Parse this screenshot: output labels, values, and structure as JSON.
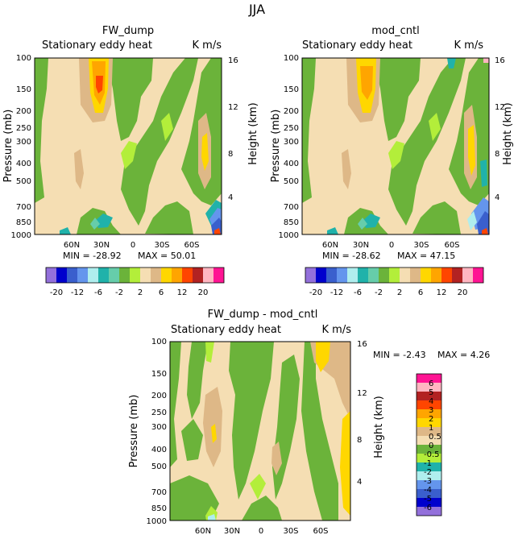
{
  "figure_title": "JJA",
  "chart_data": [
    {
      "type": "heatmap",
      "panel": "FW_dump",
      "title": "FW_dump",
      "left_label": "Stationary eddy heat",
      "right_label": "K m/s",
      "ylabel": "Pressure (mb)",
      "y2label": "Height (km)",
      "pressure_ticks": [
        "100",
        "150",
        "200",
        "250",
        "300",
        "400",
        "500",
        "700",
        "850",
        "1000"
      ],
      "height_ticks": [
        "16",
        "12",
        "8",
        "4"
      ],
      "lat_ticks": [
        "60N",
        "30N",
        "0",
        "30S",
        "60S"
      ],
      "min_label": "MIN = -28.92",
      "max_label": "MAX = 50.01",
      "value_range": [
        -28.92,
        50.01
      ]
    },
    {
      "type": "heatmap",
      "panel": "mod_cntl",
      "title": "mod_cntl",
      "left_label": "Stationary eddy heat",
      "right_label": "K m/s",
      "ylabel": "Pressure (mb)",
      "y2label": "Height (km)",
      "pressure_ticks": [
        "100",
        "150",
        "200",
        "250",
        "300",
        "400",
        "500",
        "700",
        "850",
        "1000"
      ],
      "height_ticks": [
        "16",
        "12",
        "8",
        "4"
      ],
      "lat_ticks": [
        "60N",
        "30N",
        "0",
        "30S",
        "60S"
      ],
      "min_label": "MIN = -28.62",
      "max_label": "MAX = 47.15",
      "value_range": [
        -28.62,
        47.15
      ]
    },
    {
      "type": "heatmap",
      "panel": "FW_dump - mod_cntl",
      "title": "FW_dump - mod_cntl",
      "left_label": "Stationary eddy heat",
      "right_label": "K m/s",
      "ylabel": "Pressure (mb)",
      "y2label": "Height (km)",
      "pressure_ticks": [
        "100",
        "150",
        "200",
        "250",
        "300",
        "400",
        "500",
        "700",
        "850",
        "1000"
      ],
      "height_ticks": [
        "16",
        "12",
        "8",
        "4"
      ],
      "lat_ticks": [
        "60N",
        "30N",
        "0",
        "30S",
        "60S"
      ],
      "min_label": "MIN = -2.43",
      "max_label": "MAX = 4.26",
      "value_range": [
        -2.43,
        4.26
      ]
    }
  ],
  "colorbar_top": {
    "labels": [
      "-20",
      "-12",
      "-6",
      "-2",
      "2",
      "6",
      "12",
      "20"
    ],
    "colors": [
      "#9370db",
      "#0000cd",
      "#3a5fcd",
      "#6495ed",
      "#afeeee",
      "#20b2aa",
      "#66cdaa",
      "#6bb33a",
      "#b3ee3a",
      "#f5deb3",
      "#deb887",
      "#ffd700",
      "#ffa500",
      "#ff4500",
      "#b22222",
      "#ffb6c1",
      "#ff1493"
    ]
  },
  "colorbar_diff": {
    "labels": [
      "6",
      "5",
      "4",
      "3",
      "2",
      "1",
      "0.5",
      "0",
      "-0.5",
      "-1",
      "-2",
      "-3",
      "-4",
      "-5",
      "-6"
    ],
    "colors": [
      "#ff1493",
      "#ffb6c1",
      "#b22222",
      "#ff4500",
      "#ffa500",
      "#ffd700",
      "#deb887",
      "#f5deb3",
      "#6bb33a",
      "#b3ee3a",
      "#20b2aa",
      "#afeeee",
      "#6495ed",
      "#3a5fcd",
      "#0000cd",
      "#9370db"
    ]
  }
}
